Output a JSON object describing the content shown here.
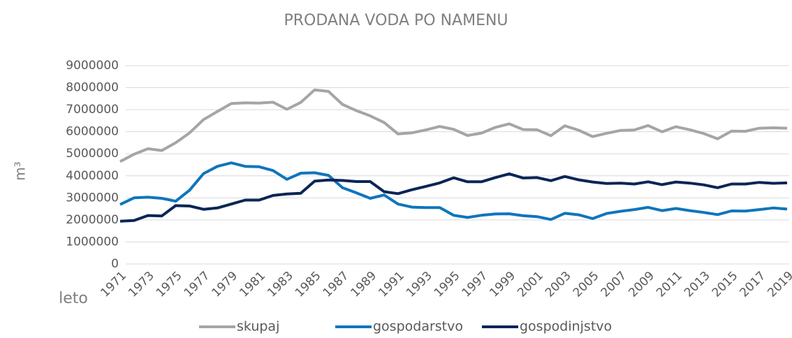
{
  "chart_data": {
    "type": "line",
    "title": "PRODANA VODA PO NAMENU",
    "ylabel": "m³",
    "xlabel": "leto",
    "categories": [
      "1971",
      null,
      "1973",
      null,
      "1975",
      null,
      "1977",
      null,
      "1979",
      null,
      "1981",
      null,
      "1983",
      null,
      "1985",
      null,
      "1987",
      null,
      "1989",
      null,
      "1991",
      null,
      "1993",
      null,
      "1995",
      null,
      "1997",
      null,
      "1999",
      null,
      "2001",
      null,
      "2003",
      null,
      "2005",
      null,
      "2007",
      null,
      "2009",
      null,
      "2011",
      null,
      "2013",
      null,
      "2015",
      null,
      "2017",
      null,
      "2019"
    ],
    "series": [
      {
        "name": "skupaj",
        "color": "#a5a5a5",
        "values": [
          4650000,
          4980000,
          5230000,
          5150000,
          5500000,
          5950000,
          6550000,
          6920000,
          7280000,
          7310000,
          7300000,
          7340000,
          7020000,
          7330000,
          7900000,
          7830000,
          7240000,
          6960000,
          6720000,
          6420000,
          5900000,
          5950000,
          6080000,
          6240000,
          6110000,
          5830000,
          5940000,
          6200000,
          6360000,
          6100000,
          6090000,
          5820000,
          6270000,
          6070000,
          5780000,
          5930000,
          6060000,
          6080000,
          6280000,
          6000000,
          6230000,
          6090000,
          5920000,
          5680000,
          6030000,
          6020000,
          6160000,
          6180000,
          6160000
        ]
      },
      {
        "name": "gospodarstvo",
        "color": "#0f75bc",
        "values": [
          2700000,
          3000000,
          3030000,
          2980000,
          2850000,
          3350000,
          4100000,
          4430000,
          4590000,
          4430000,
          4410000,
          4240000,
          3840000,
          4120000,
          4140000,
          4020000,
          3460000,
          3230000,
          2980000,
          3130000,
          2720000,
          2580000,
          2560000,
          2560000,
          2210000,
          2110000,
          2210000,
          2270000,
          2280000,
          2190000,
          2150000,
          2020000,
          2300000,
          2230000,
          2060000,
          2290000,
          2390000,
          2470000,
          2570000,
          2420000,
          2520000,
          2420000,
          2340000,
          2240000,
          2410000,
          2400000,
          2470000,
          2540000,
          2490000
        ]
      },
      {
        "name": "gospodinjstvo",
        "color": "#0b2556",
        "values": [
          1940000,
          1970000,
          2200000,
          2180000,
          2650000,
          2630000,
          2480000,
          2540000,
          2720000,
          2900000,
          2900000,
          3110000,
          3180000,
          3210000,
          3760000,
          3810000,
          3790000,
          3740000,
          3740000,
          3280000,
          3190000,
          3370000,
          3520000,
          3680000,
          3910000,
          3730000,
          3730000,
          3920000,
          4090000,
          3900000,
          3920000,
          3780000,
          3970000,
          3820000,
          3720000,
          3650000,
          3670000,
          3630000,
          3730000,
          3600000,
          3720000,
          3670000,
          3590000,
          3460000,
          3630000,
          3630000,
          3700000,
          3660000,
          3680000
        ]
      }
    ],
    "ylim": [
      0,
      9000000
    ],
    "yticks": [
      0,
      1000000,
      2000000,
      3000000,
      4000000,
      5000000,
      6000000,
      7000000,
      8000000,
      9000000
    ],
    "grid": true,
    "legend": "bottom"
  }
}
